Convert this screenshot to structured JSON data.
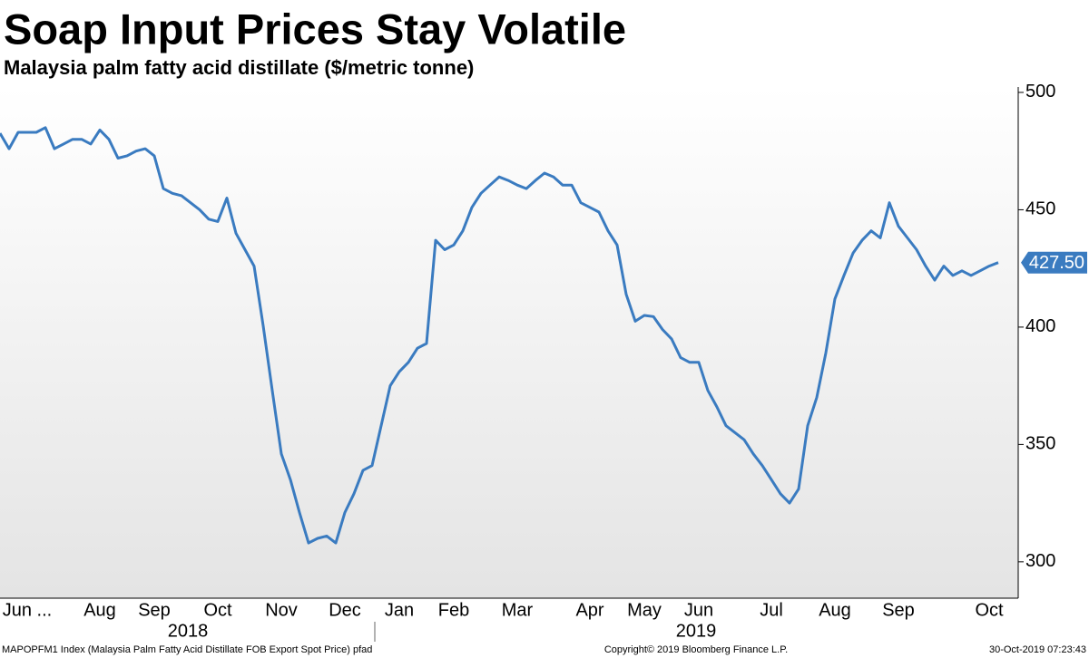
{
  "chart_data": {
    "type": "line",
    "title": "Soap Input Prices Stay Volatile",
    "subtitle": "Malaysia palm fatty acid distillate ($/metric tonne)",
    "categories": [
      null,
      null,
      null,
      "Jun ...",
      null,
      null,
      null,
      null,
      null,
      null,
      null,
      "Aug",
      null,
      null,
      null,
      null,
      null,
      "Sep",
      null,
      null,
      null,
      null,
      null,
      null,
      "Oct",
      null,
      null,
      null,
      null,
      null,
      null,
      "Nov",
      null,
      null,
      null,
      null,
      null,
      null,
      "Dec",
      null,
      null,
      null,
      null,
      null,
      "Jan",
      null,
      null,
      null,
      null,
      null,
      "Feb",
      null,
      null,
      null,
      null,
      null,
      null,
      "Mar",
      null,
      null,
      null,
      null,
      null,
      null,
      null,
      "Apr",
      null,
      null,
      null,
      null,
      null,
      "May",
      null,
      null,
      null,
      null,
      null,
      "Jun",
      null,
      null,
      null,
      null,
      null,
      null,
      null,
      "Jul",
      null,
      null,
      null,
      null,
      null,
      null,
      "Aug",
      null,
      null,
      null,
      null,
      null,
      null,
      "Sep",
      null,
      null,
      null,
      null,
      null,
      null,
      null,
      null,
      null,
      "Oct",
      null
    ],
    "values": [
      482.6,
      476,
      483,
      483,
      483,
      485,
      476,
      478,
      480,
      480,
      478,
      484,
      480,
      472,
      473,
      475,
      476,
      473,
      459,
      457,
      456,
      453,
      450,
      446,
      445,
      455,
      440,
      433,
      426,
      400.6,
      373,
      346,
      335,
      321,
      308,
      310,
      311,
      308,
      321,
      329,
      339,
      341,
      358,
      375,
      381,
      385,
      391,
      393,
      437,
      433,
      435,
      441,
      451,
      457,
      460.5,
      464,
      462.5,
      460.5,
      459,
      462.5,
      465.6,
      464,
      460.5,
      460.5,
      453,
      451,
      449,
      441,
      435,
      414,
      402.5,
      405,
      404.5,
      399,
      395,
      387,
      385,
      385,
      373,
      366,
      358,
      355,
      352,
      346,
      341,
      335,
      329,
      325,
      331,
      358,
      370,
      389,
      412,
      422,
      431.5,
      437,
      441,
      438,
      453,
      443,
      438,
      433,
      426,
      420,
      426,
      422,
      424,
      422,
      424,
      426,
      427.5
    ],
    "value_labels": [
      null,
      null,
      null,
      null,
      null,
      null,
      null,
      null,
      null,
      null,
      null,
      null,
      null,
      null,
      null,
      null,
      null,
      null,
      null,
      null,
      null,
      null,
      null,
      null,
      null,
      null,
      null,
      null,
      null,
      null,
      null,
      null,
      null,
      null,
      null,
      null,
      null,
      null,
      null,
      null,
      null,
      null,
      null,
      null,
      null,
      null,
      null,
      null,
      null,
      null,
      null,
      null,
      null,
      null,
      null,
      null,
      null,
      null,
      null,
      null,
      null,
      null,
      null,
      null,
      null,
      null,
      null,
      null,
      null,
      null,
      null,
      null,
      null,
      null,
      null,
      null,
      null,
      null,
      null,
      null,
      null,
      null,
      null,
      null,
      null,
      null,
      null,
      null,
      null,
      null,
      null,
      null,
      null,
      null,
      null,
      null,
      null,
      null,
      null,
      null,
      null,
      null,
      null,
      null,
      null,
      null,
      null,
      null,
      null,
      null,
      "427.50"
    ],
    "color": "#3a7bc0",
    "ylim": [
      284.5,
      502.3
    ],
    "yticks": [
      300,
      350,
      400,
      450,
      500
    ],
    "year_labels": [
      "2018",
      "2019"
    ],
    "footer": {
      "source": "MAPOPFM1 Index (Malaysia Palm Fatty Acid Distillate FOB Export Spot Price) pfad",
      "copyright": "Copyright© 2019 Bloomberg Finance L.P.",
      "timestamp": "30-Oct-2019 07:23:43"
    }
  }
}
